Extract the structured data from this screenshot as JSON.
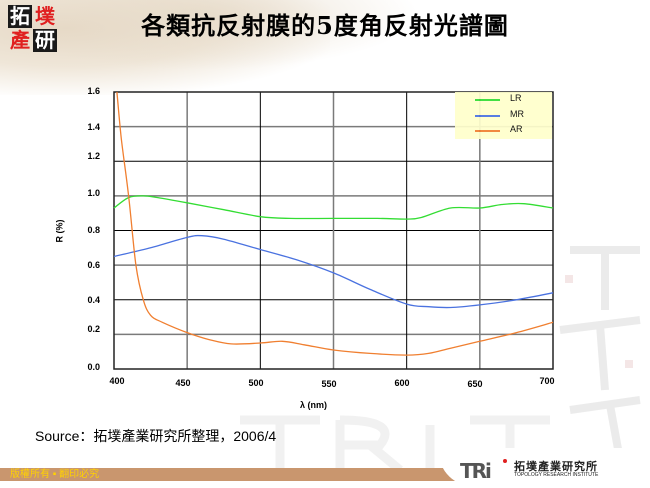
{
  "header": {
    "logo_chars": [
      "拓",
      "墣",
      "產",
      "研"
    ],
    "title": "各類抗反射膜的5度角反射光譜圖"
  },
  "source_note": "Source：拓墣產業研究所整理，2006/4",
  "footer": {
    "copyright": "版權所有 ▪ 翻印必究",
    "org_logo": "TRi",
    "org_name_cn": "拓墣產業研究所",
    "org_name_en": "TOPOLOGY RESEARCH INSTITUTE"
  },
  "colors": {
    "LR": "#33dd33",
    "MR": "#4a72e0",
    "AR": "#f07f30",
    "legend_bg": "#ffffcc",
    "footer_bar": "#c9966e",
    "footer_text": "#ffd200"
  },
  "chart_data": {
    "type": "line",
    "title": "各類抗反射膜的5度角反射光譜圖",
    "xlabel": "λ (nm)",
    "ylabel": "R (%)",
    "xlim": [
      400,
      700
    ],
    "ylim": [
      0.0,
      1.6
    ],
    "x_ticks": [
      "400",
      "450",
      "500",
      "550",
      "600",
      "650",
      "700"
    ],
    "y_ticks": [
      "0.0",
      "0.2",
      "0.4",
      "0.6",
      "0.8",
      "1.0",
      "1.2",
      "1.4",
      "1.6"
    ],
    "grid": true,
    "legend_position": "top-right",
    "series": [
      {
        "name": "LR",
        "x": [
          400,
          410,
          420,
          430,
          450,
          475,
          500,
          520,
          550,
          580,
          600,
          610,
          630,
          650,
          665,
          680,
          700
        ],
        "values": [
          0.93,
          0.99,
          1.0,
          0.99,
          0.96,
          0.92,
          0.88,
          0.87,
          0.87,
          0.87,
          0.866,
          0.875,
          0.93,
          0.93,
          0.95,
          0.955,
          0.93
        ]
      },
      {
        "name": "MR",
        "x": [
          400,
          425,
          450,
          460,
          475,
          500,
          525,
          550,
          575,
          600,
          615,
          630,
          650,
          675,
          700
        ],
        "values": [
          0.65,
          0.7,
          0.76,
          0.77,
          0.75,
          0.69,
          0.63,
          0.555,
          0.46,
          0.375,
          0.36,
          0.355,
          0.37,
          0.4,
          0.44
        ]
      },
      {
        "name": "AR",
        "x": [
          402,
          405,
          410,
          415,
          420,
          425,
          433,
          450,
          465,
          480,
          500,
          515,
          530,
          550,
          575,
          600,
          615,
          630,
          650,
          675,
          700
        ],
        "values": [
          1.6,
          1.33,
          1.0,
          0.6,
          0.4,
          0.31,
          0.27,
          0.21,
          0.17,
          0.145,
          0.15,
          0.16,
          0.14,
          0.11,
          0.09,
          0.08,
          0.09,
          0.12,
          0.16,
          0.21,
          0.27
        ]
      }
    ]
  }
}
